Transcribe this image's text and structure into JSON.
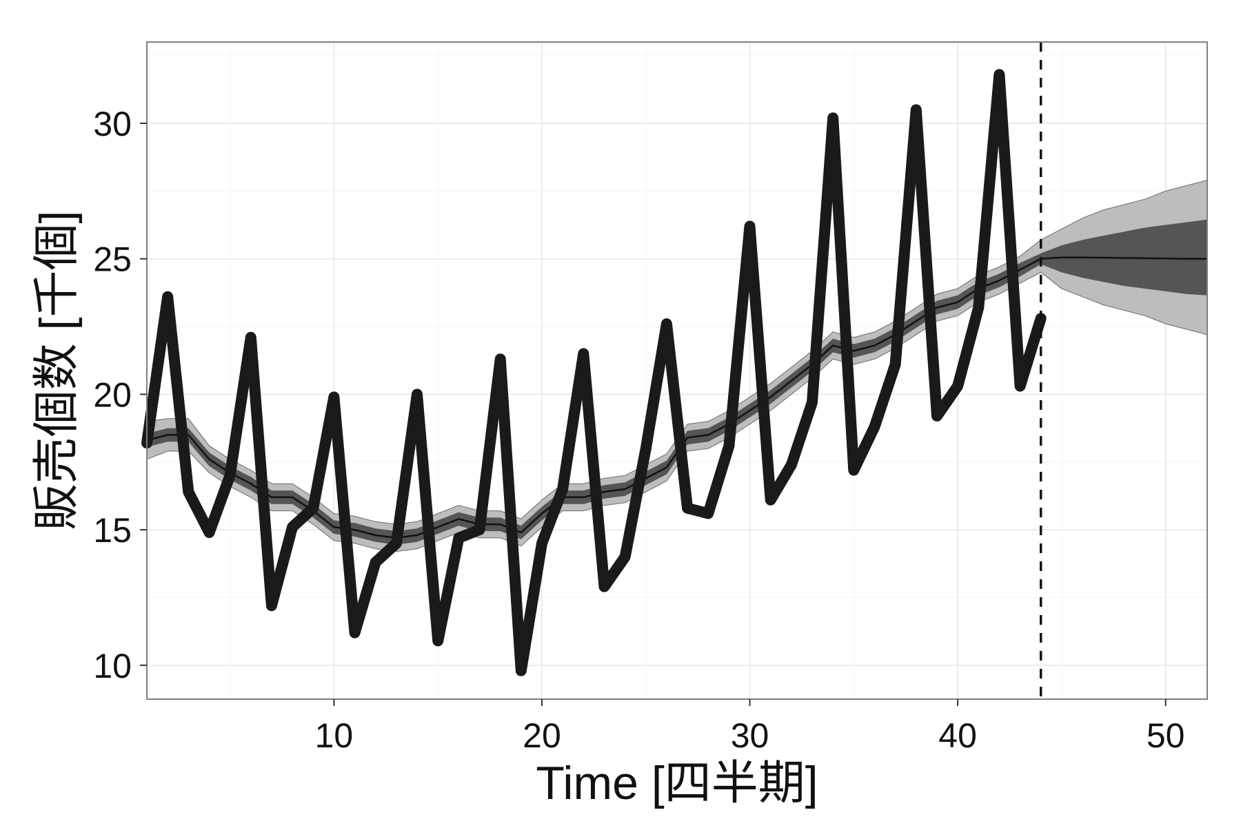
{
  "chart_data": {
    "type": "line",
    "title": "",
    "xlabel": "Time [四半期]",
    "ylabel": "販売個数 [千個]",
    "xlim": [
      1,
      52
    ],
    "ylim": [
      8.75,
      33.0
    ],
    "x_ticks": [
      10,
      20,
      30,
      40,
      50
    ],
    "y_ticks": [
      10,
      15,
      20,
      25,
      30
    ],
    "grid": true,
    "background": "#ffffff",
    "forecast_start": 44,
    "series": [
      {
        "kind": "observed",
        "x": [
          1,
          2,
          3,
          4,
          5,
          6,
          7,
          8,
          9,
          10,
          11,
          12,
          13,
          14,
          15,
          16,
          17,
          18,
          19,
          20,
          21,
          22,
          23,
          24,
          25,
          26,
          27,
          28,
          29,
          30,
          31,
          32,
          33,
          34,
          35,
          36,
          37,
          38,
          39,
          40,
          41,
          42,
          43,
          44
        ],
        "values": [
          18.2,
          23.6,
          16.4,
          14.9,
          17.0,
          22.1,
          12.2,
          15.1,
          15.8,
          19.9,
          11.2,
          13.8,
          14.5,
          20.0,
          10.9,
          14.7,
          15.0,
          21.3,
          9.8,
          14.5,
          16.5,
          21.5,
          12.9,
          14.0,
          18.0,
          22.6,
          15.8,
          15.6,
          18.1,
          26.2,
          16.1,
          17.4,
          19.7,
          30.2,
          17.2,
          18.8,
          21.1,
          30.5,
          19.2,
          20.3,
          23.2,
          31.8,
          20.3,
          22.8
        ],
        "color": "#1a1a1a"
      },
      {
        "kind": "level",
        "x": [
          1,
          2,
          3,
          4,
          5,
          6,
          7,
          8,
          9,
          10,
          11,
          12,
          13,
          14,
          15,
          16,
          17,
          18,
          19,
          20,
          21,
          22,
          23,
          24,
          25,
          26,
          27,
          28,
          29,
          30,
          31,
          32,
          33,
          34,
          35,
          36,
          37,
          38,
          39,
          40,
          41,
          42,
          43,
          44,
          45,
          46,
          47,
          48,
          49,
          50,
          51,
          52
        ],
        "values": [
          18.3,
          18.5,
          18.5,
          17.6,
          17.1,
          16.7,
          16.2,
          16.2,
          15.7,
          15.1,
          15.0,
          14.8,
          14.7,
          14.8,
          15.1,
          15.4,
          15.2,
          15.2,
          14.9,
          15.6,
          16.2,
          16.2,
          16.4,
          16.5,
          16.9,
          17.3,
          18.4,
          18.5,
          18.9,
          19.4,
          19.9,
          20.5,
          21.1,
          21.8,
          21.6,
          21.8,
          22.2,
          22.7,
          23.2,
          23.4,
          23.9,
          24.2,
          24.6,
          25.0,
          25.05,
          25.05,
          25.04,
          25.03,
          25.02,
          25.01,
          25.0,
          25.0
        ],
        "color": "#111111"
      }
    ],
    "bands": [
      {
        "kind": "outer",
        "x": [
          1,
          2,
          3,
          4,
          5,
          6,
          7,
          8,
          9,
          10,
          11,
          12,
          13,
          14,
          15,
          16,
          17,
          18,
          19,
          20,
          21,
          22,
          23,
          24,
          25,
          26,
          27,
          28,
          29,
          30,
          31,
          32,
          33,
          34,
          35,
          36,
          37,
          38,
          39,
          40,
          41,
          42,
          43,
          44,
          45,
          46,
          47,
          48,
          49,
          50,
          51,
          52
        ],
        "lower": [
          17.6,
          17.9,
          17.9,
          17.1,
          16.6,
          16.2,
          15.7,
          15.7,
          15.2,
          14.6,
          14.5,
          14.3,
          14.2,
          14.3,
          14.6,
          14.9,
          14.7,
          14.7,
          14.4,
          15.1,
          15.7,
          15.7,
          15.9,
          16.0,
          16.4,
          16.8,
          17.9,
          18.0,
          18.4,
          18.9,
          19.4,
          20.0,
          20.6,
          21.3,
          21.1,
          21.3,
          21.7,
          22.2,
          22.7,
          22.9,
          23.4,
          23.7,
          24.1,
          24.5,
          23.9,
          23.6,
          23.3,
          23.1,
          22.9,
          22.6,
          22.4,
          22.2
        ],
        "upper": [
          19.0,
          19.1,
          19.1,
          18.1,
          17.6,
          17.2,
          16.7,
          16.7,
          16.2,
          15.6,
          15.5,
          15.3,
          15.2,
          15.3,
          15.6,
          15.9,
          15.7,
          15.7,
          15.4,
          16.1,
          16.7,
          16.7,
          16.9,
          17.0,
          17.4,
          17.8,
          18.9,
          19.0,
          19.4,
          19.9,
          20.4,
          21.0,
          21.6,
          22.3,
          22.1,
          22.3,
          22.7,
          23.2,
          23.7,
          23.9,
          24.4,
          24.7,
          25.1,
          25.7,
          26.1,
          26.5,
          26.8,
          27.0,
          27.2,
          27.5,
          27.7,
          27.9
        ],
        "color": "#bdbdbd"
      },
      {
        "kind": "inner",
        "x": [
          1,
          2,
          3,
          4,
          5,
          6,
          7,
          8,
          9,
          10,
          11,
          12,
          13,
          14,
          15,
          16,
          17,
          18,
          19,
          20,
          21,
          22,
          23,
          24,
          25,
          26,
          27,
          28,
          29,
          30,
          31,
          32,
          33,
          34,
          35,
          36,
          37,
          38,
          39,
          40,
          41,
          42,
          43,
          44,
          45,
          46,
          47,
          48,
          49,
          50,
          51,
          52
        ],
        "lower": [
          18.05,
          18.25,
          18.25,
          17.35,
          16.85,
          16.45,
          15.95,
          15.95,
          15.45,
          14.85,
          14.75,
          14.55,
          14.45,
          14.55,
          14.85,
          15.15,
          14.95,
          14.95,
          14.65,
          15.35,
          15.95,
          15.95,
          16.15,
          16.25,
          16.65,
          17.05,
          18.15,
          18.25,
          18.65,
          19.15,
          19.65,
          20.25,
          20.85,
          21.55,
          21.35,
          21.55,
          21.95,
          22.45,
          22.95,
          23.15,
          23.65,
          23.95,
          24.35,
          24.8,
          24.5,
          24.3,
          24.15,
          24.0,
          23.9,
          23.8,
          23.7,
          23.65
        ],
        "upper": [
          18.55,
          18.75,
          18.75,
          17.85,
          17.35,
          16.95,
          16.45,
          16.45,
          15.95,
          15.35,
          15.25,
          15.05,
          14.95,
          15.05,
          15.35,
          15.65,
          15.45,
          15.45,
          15.15,
          15.85,
          16.45,
          16.45,
          16.65,
          16.75,
          17.15,
          17.55,
          18.65,
          18.75,
          19.15,
          19.65,
          20.15,
          20.75,
          21.35,
          22.05,
          21.85,
          22.05,
          22.45,
          22.95,
          23.45,
          23.65,
          24.15,
          24.45,
          24.85,
          25.2,
          25.5,
          25.7,
          25.85,
          26.0,
          26.15,
          26.25,
          26.35,
          26.45
        ],
        "color": "#555555"
      }
    ]
  }
}
